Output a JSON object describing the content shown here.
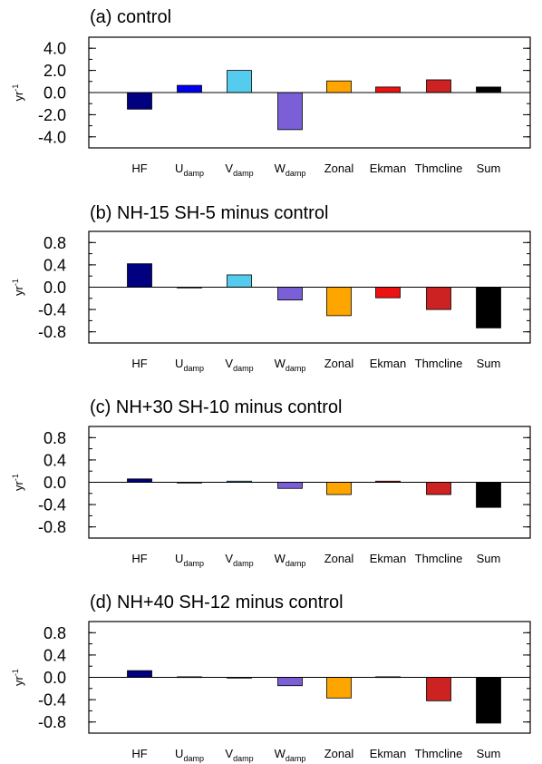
{
  "categories": [
    {
      "main": "HF",
      "sub": ""
    },
    {
      "main": "U",
      "sub": "damp"
    },
    {
      "main": "V",
      "sub": "damp"
    },
    {
      "main": "W",
      "sub": "damp"
    },
    {
      "main": "Zonal",
      "sub": ""
    },
    {
      "main": "Ekman",
      "sub": ""
    },
    {
      "main": "Thmcline",
      "sub": ""
    },
    {
      "main": "Sum",
      "sub": ""
    }
  ],
  "colors": [
    "#000080",
    "#0000ee",
    "#55ccee",
    "#7a5fd6",
    "#ffa500",
    "#ee1111",
    "#cc2222",
    "#000000"
  ],
  "ylabel": {
    "base": "yr",
    "sup": "-1"
  },
  "chart_data": [
    {
      "type": "bar",
      "title": "(a) control",
      "categories": [
        "HF",
        "Udamp",
        "Vdamp",
        "Wdamp",
        "Zonal",
        "Ekman",
        "Thmcline",
        "Sum"
      ],
      "values": [
        -1.5,
        0.65,
        2.0,
        -3.35,
        1.05,
        0.5,
        1.15,
        0.5
      ],
      "ylim": [
        -5.0,
        5.0
      ],
      "yticks": [
        4.0,
        2.0,
        0.0,
        -2.0,
        -4.0
      ],
      "ytick_labels": [
        "4.0",
        "2.0",
        "0.0",
        "-2.0",
        "-4.0"
      ],
      "ylabel": "yr-1"
    },
    {
      "type": "bar",
      "title": "(b) NH-15 SH-5 minus control",
      "categories": [
        "HF",
        "Udamp",
        "Vdamp",
        "Wdamp",
        "Zonal",
        "Ekman",
        "Thmcline",
        "Sum"
      ],
      "values": [
        0.42,
        -0.01,
        0.22,
        -0.23,
        -0.51,
        -0.19,
        -0.4,
        -0.73
      ],
      "ylim": [
        -1.0,
        1.0
      ],
      "yticks": [
        0.8,
        0.4,
        0.0,
        -0.4,
        -0.8
      ],
      "ytick_labels": [
        "0.8",
        "0.4",
        "0.0",
        "-0.4",
        "-0.8"
      ],
      "ylabel": "yr-1"
    },
    {
      "type": "bar",
      "title": "(c) NH+30 SH-10 minus control",
      "categories": [
        "HF",
        "Udamp",
        "Vdamp",
        "Wdamp",
        "Zonal",
        "Ekman",
        "Thmcline",
        "Sum"
      ],
      "values": [
        0.06,
        -0.01,
        0.02,
        -0.11,
        -0.22,
        0.02,
        -0.22,
        -0.45
      ],
      "ylim": [
        -1.0,
        1.0
      ],
      "yticks": [
        0.8,
        0.4,
        0.0,
        -0.4,
        -0.8
      ],
      "ytick_labels": [
        "0.8",
        "0.4",
        "0.0",
        "-0.4",
        "-0.8"
      ],
      "ylabel": "yr-1"
    },
    {
      "type": "bar",
      "title": "(d) NH+40 SH-12 minus control",
      "categories": [
        "HF",
        "Udamp",
        "Vdamp",
        "Wdamp",
        "Zonal",
        "Ekman",
        "Thmcline",
        "Sum"
      ],
      "values": [
        0.12,
        0.01,
        -0.005,
        -0.15,
        -0.37,
        0.01,
        -0.42,
        -0.82
      ],
      "ylim": [
        -1.0,
        1.0
      ],
      "yticks": [
        0.8,
        0.4,
        0.0,
        -0.4,
        -0.8
      ],
      "ytick_labels": [
        "0.8",
        "0.4",
        "0.0",
        "-0.4",
        "-0.8"
      ],
      "ylabel": "yr-1"
    }
  ]
}
